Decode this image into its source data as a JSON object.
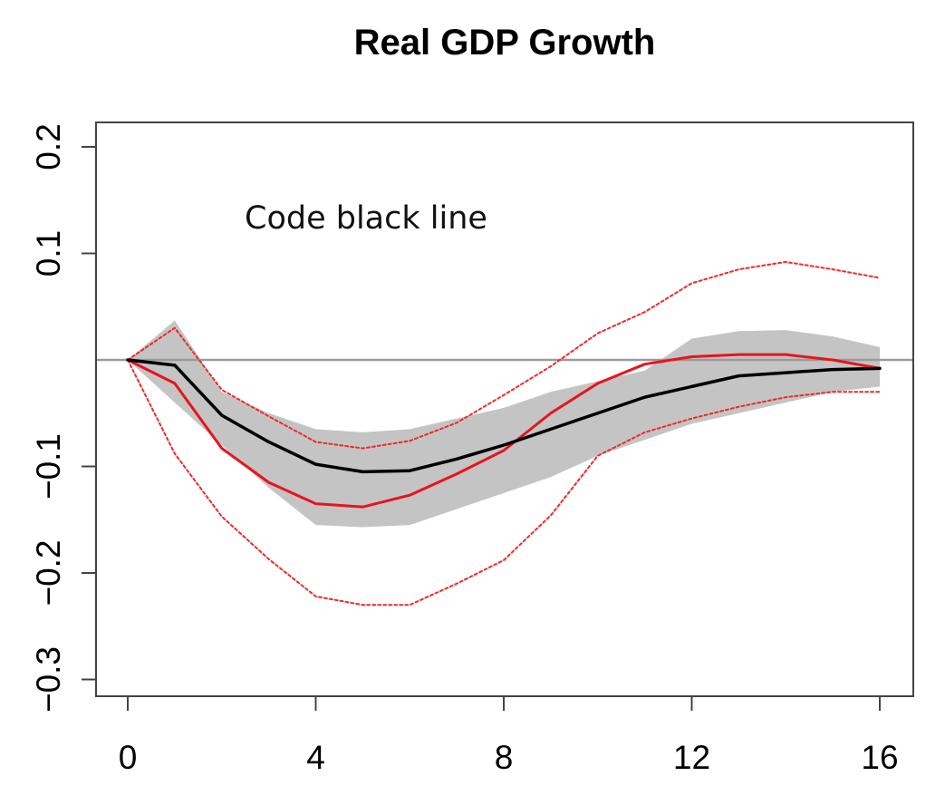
{
  "chart_data": {
    "type": "line",
    "title": "Real GDP Growth",
    "xlabel": "",
    "ylabel": "",
    "xlim": [
      0,
      16
    ],
    "ylim": [
      -0.3,
      0.2
    ],
    "x_ticks": [
      {
        "value": 0,
        "label": "0"
      },
      {
        "value": 4,
        "label": "4"
      },
      {
        "value": 8,
        "label": "8"
      },
      {
        "value": 12,
        "label": "12"
      },
      {
        "value": 16,
        "label": "16"
      }
    ],
    "y_ticks": [
      {
        "value": -0.3,
        "label": "−0.3"
      },
      {
        "value": -0.2,
        "label": "−0.2"
      },
      {
        "value": -0.1,
        "label": "−0.1"
      },
      {
        "value": 0.1,
        "label": "0.1"
      },
      {
        "value": 0.2,
        "label": "0.2"
      }
    ],
    "reference_line": 0,
    "x": [
      0,
      1,
      2,
      3,
      4,
      5,
      6,
      7,
      8,
      9,
      10,
      11,
      12,
      13,
      14,
      15,
      16
    ],
    "annotation": "Code black line",
    "colors": {
      "band": "#c4c4c4",
      "black_line": "#000000",
      "red_line": "#e8141c",
      "red_dotted": "#ee2a2a",
      "zero_line": "#9a9a9a",
      "axis": "#444444"
    },
    "band": {
      "upper": [
        0.0,
        0.037,
        -0.03,
        -0.05,
        -0.065,
        -0.068,
        -0.065,
        -0.055,
        -0.045,
        -0.03,
        -0.02,
        -0.01,
        0.02,
        0.027,
        0.028,
        0.022,
        0.012
      ],
      "lower": [
        0.0,
        -0.04,
        -0.08,
        -0.12,
        -0.155,
        -0.157,
        -0.155,
        -0.14,
        -0.125,
        -0.11,
        -0.09,
        -0.075,
        -0.06,
        -0.05,
        -0.04,
        -0.03,
        -0.025
      ]
    },
    "series": [
      {
        "values": [
          0.0,
          -0.005,
          -0.052,
          -0.077,
          -0.098,
          -0.105,
          -0.104,
          -0.093,
          -0.08,
          -0.065,
          -0.05,
          -0.035,
          -0.025,
          -0.015,
          -0.012,
          -0.009,
          -0.008
        ]
      },
      {
        "values": [
          0.0,
          -0.022,
          -0.083,
          -0.115,
          -0.135,
          -0.138,
          -0.127,
          -0.107,
          -0.085,
          -0.05,
          -0.022,
          -0.004,
          0.003,
          0.005,
          0.005,
          0.0,
          -0.008
        ]
      },
      {
        "values": [
          0.0,
          0.03,
          -0.028,
          -0.053,
          -0.077,
          -0.083,
          -0.076,
          -0.059,
          -0.033,
          -0.006,
          0.025,
          0.045,
          0.072,
          0.085,
          0.092,
          0.085,
          0.077
        ]
      },
      {
        "values": [
          0.0,
          -0.088,
          -0.147,
          -0.187,
          -0.222,
          -0.23,
          -0.23,
          -0.21,
          -0.188,
          -0.146,
          -0.09,
          -0.068,
          -0.055,
          -0.044,
          -0.035,
          -0.03,
          -0.03
        ]
      }
    ]
  }
}
